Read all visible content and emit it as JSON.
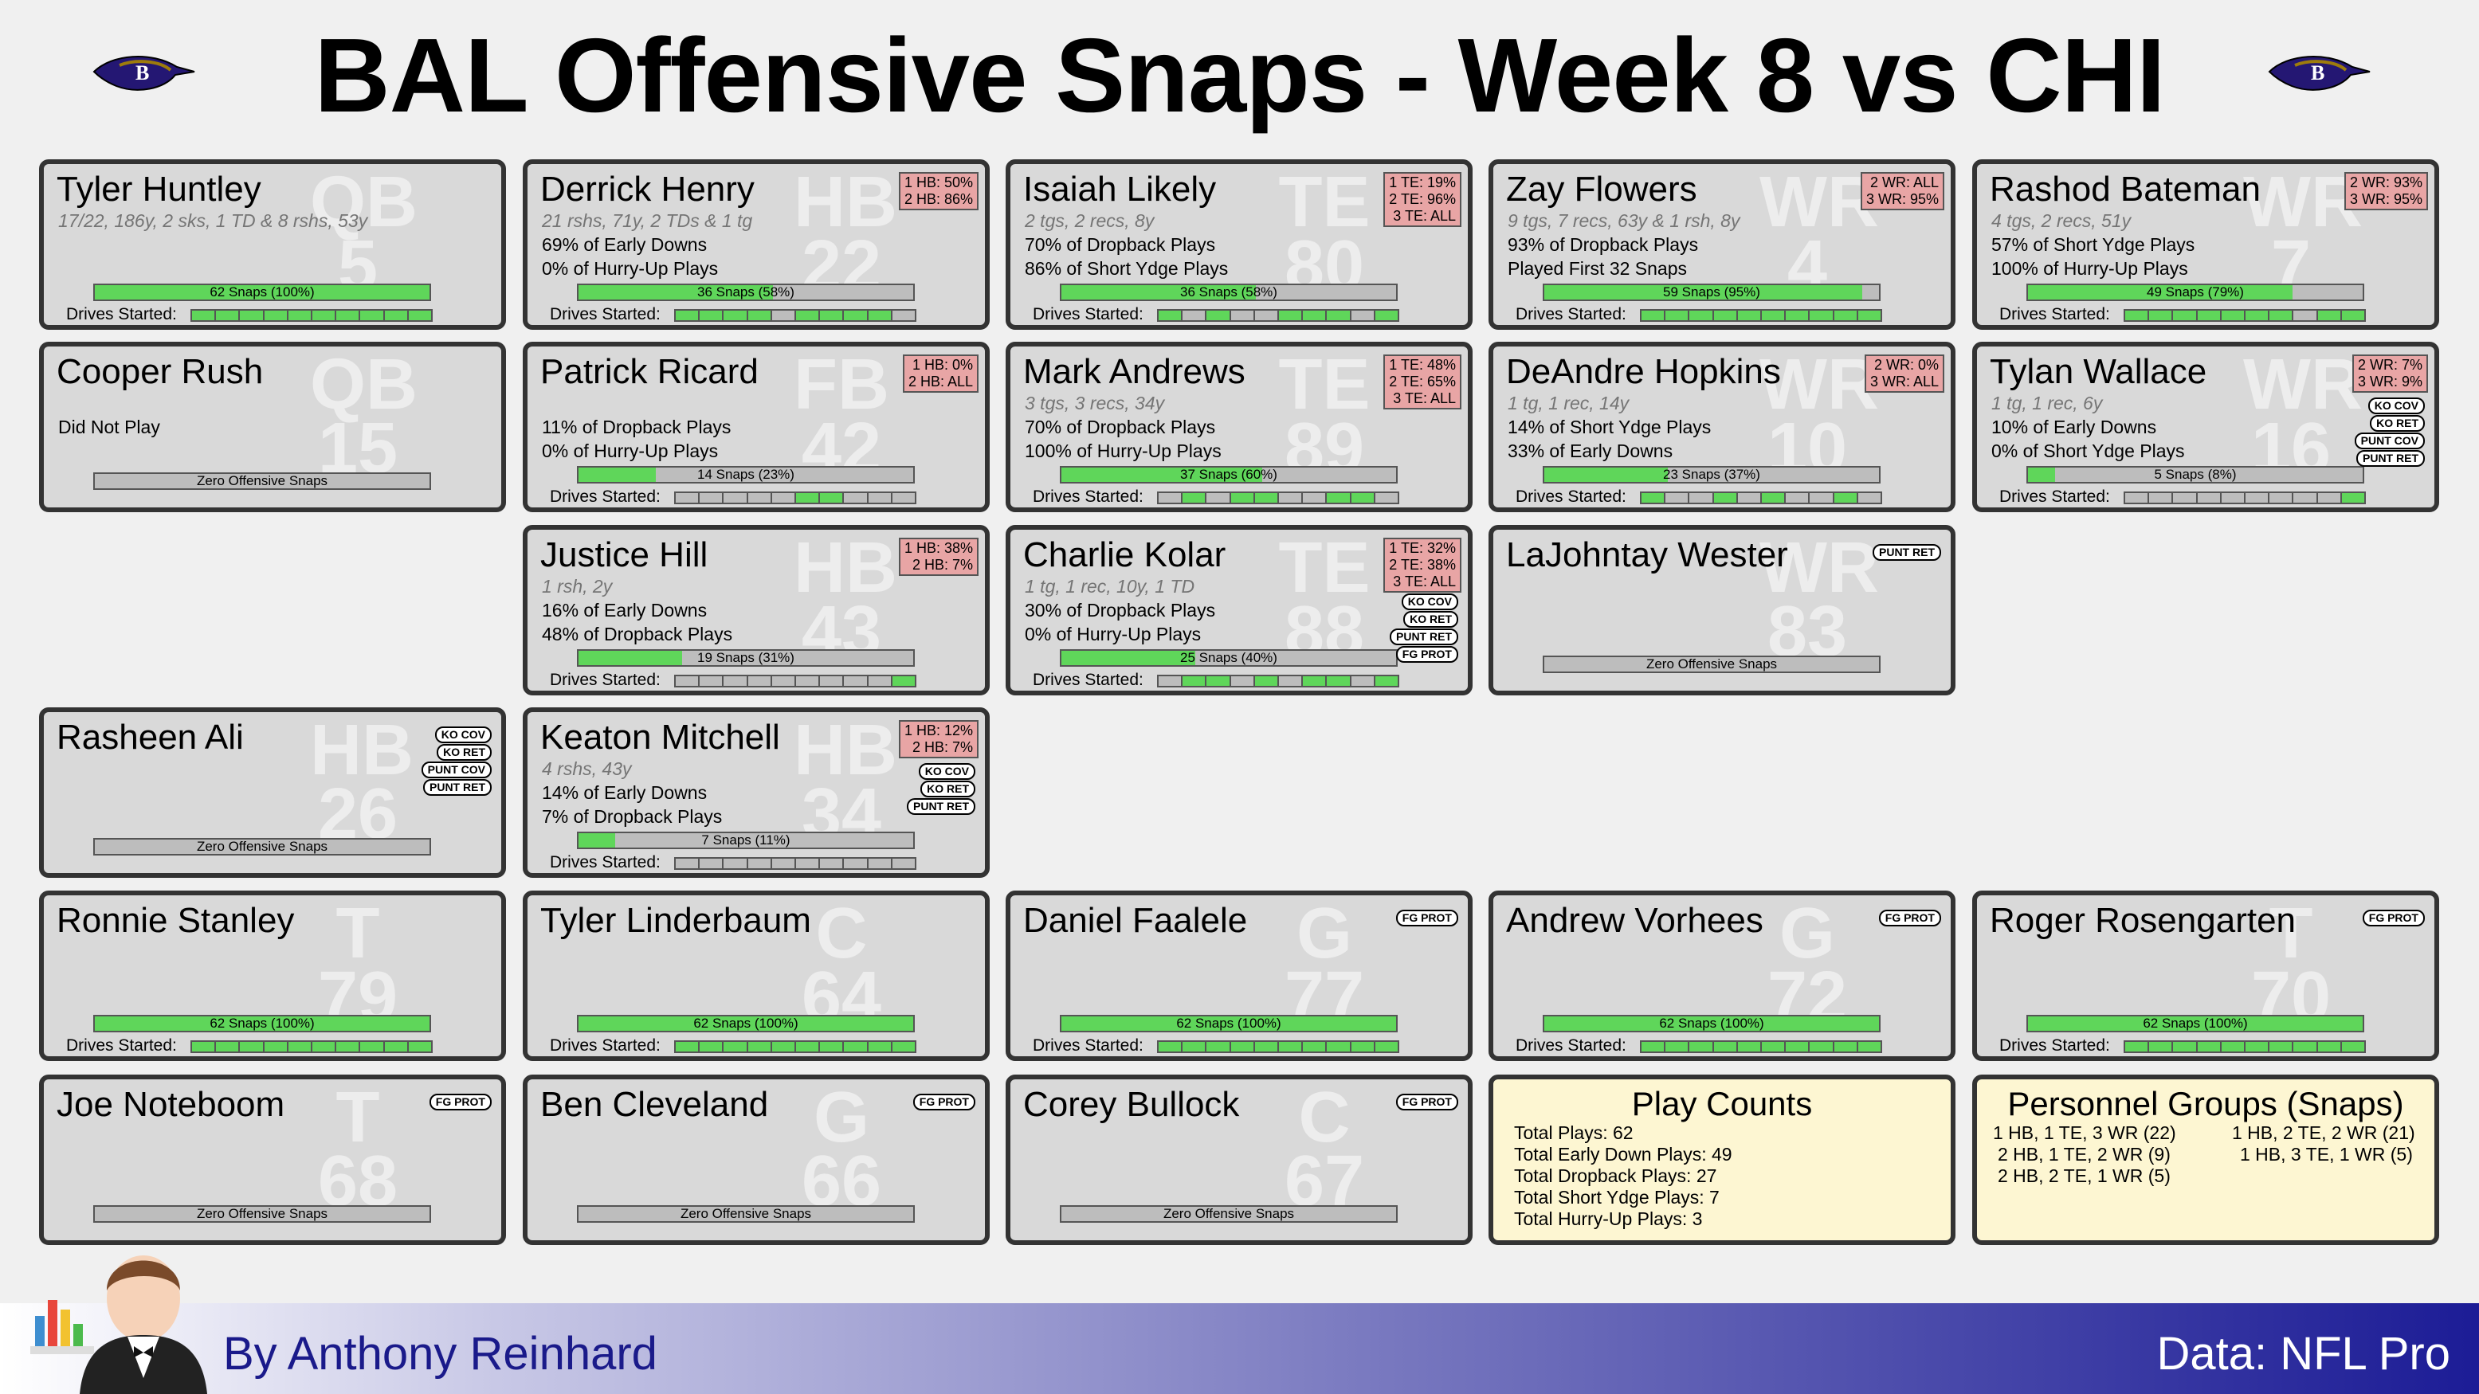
{
  "page": {
    "title": "BAL Offensive Snaps - Week 8 vs CHI",
    "author": "By Anthony Reinhard",
    "source": "Data: NFL Pro",
    "colors": {
      "snap_fill": "#5fd65a",
      "card_bg": "#d9d9d9",
      "pct_bg": "#e8a5a5",
      "info_bg": "#fdf6d2",
      "footer_end": "#1c1c96"
    }
  },
  "drives_label": "Drives Started:",
  "players": [
    {
      "name": "Tyler Huntley",
      "pos": "QB",
      "num": "5",
      "line1": "17/22, 186y, 2 sks, 1 TD & 8 rshs, 53y",
      "line2": "",
      "line3": "",
      "snaps_label": "62 Snaps (100%)",
      "snap_pct": 1.0,
      "drives": [
        1,
        1,
        1,
        1,
        1,
        1,
        1,
        1,
        1,
        1
      ],
      "pct_lines": [],
      "tags": []
    },
    {
      "name": "Derrick Henry",
      "pos": "HB",
      "num": "22",
      "line1": "21 rshs, 71y, 2 TDs & 1 tg",
      "line2": "69% of Early Downs",
      "line3": "0% of Hurry-Up Plays",
      "snaps_label": "36 Snaps (58%)",
      "snap_pct": 0.58,
      "drives": [
        1,
        1,
        1,
        1,
        0,
        1,
        1,
        1,
        1,
        0
      ],
      "pct_lines": [
        "1 HB: 50%",
        "2 HB: 86%"
      ],
      "tags": []
    },
    {
      "name": "Isaiah Likely",
      "pos": "TE",
      "num": "80",
      "line1": "2 tgs, 2 recs, 8y",
      "line2": "70% of Dropback Plays",
      "line3": "86% of Short Ydge Plays",
      "snaps_label": "36 Snaps (58%)",
      "snap_pct": 0.58,
      "drives": [
        1,
        0,
        1,
        0,
        0,
        1,
        1,
        1,
        0,
        1
      ],
      "pct_lines": [
        "1 TE: 19%",
        "2 TE: 96%",
        "3 TE: ALL"
      ],
      "tags": []
    },
    {
      "name": "Zay Flowers",
      "pos": "WR",
      "num": "4",
      "line1": "9 tgs, 7 recs, 63y & 1 rsh, 8y",
      "line2": "93% of Dropback Plays",
      "line3": "Played First 32 Snaps",
      "snaps_label": "59 Snaps (95%)",
      "snap_pct": 0.95,
      "drives": [
        1,
        1,
        1,
        1,
        1,
        1,
        1,
        1,
        1,
        1
      ],
      "pct_lines": [
        "2 WR: ALL",
        "3 WR: 95%"
      ],
      "tags": []
    },
    {
      "name": "Rashod Bateman",
      "pos": "WR",
      "num": "7",
      "line1": "4 tgs, 2 recs, 51y",
      "line2": "57% of Short Ydge Plays",
      "line3": "100% of Hurry-Up Plays",
      "snaps_label": "49 Snaps (79%)",
      "snap_pct": 0.79,
      "drives": [
        1,
        1,
        1,
        1,
        1,
        1,
        1,
        0,
        1,
        1
      ],
      "pct_lines": [
        "2 WR: 93%",
        "3 WR: 95%"
      ],
      "tags": []
    },
    {
      "name": "Cooper Rush",
      "pos": "QB",
      "num": "15",
      "line1": "",
      "line2": "Did Not Play",
      "line3": "",
      "snaps_label": "Zero Offensive Snaps",
      "snap_pct": 0,
      "drives": null,
      "pct_lines": [],
      "tags": []
    },
    {
      "name": "Patrick Ricard",
      "pos": "FB",
      "num": "42",
      "line1": "",
      "line2": "11% of Dropback Plays",
      "line3": "0% of Hurry-Up Plays",
      "snaps_label": "14 Snaps (23%)",
      "snap_pct": 0.23,
      "drives": [
        0,
        0,
        0,
        0,
        0,
        1,
        1,
        0,
        0,
        0
      ],
      "pct_lines": [
        "1 HB:  0%",
        "2 HB: ALL"
      ],
      "tags": []
    },
    {
      "name": "Mark Andrews",
      "pos": "TE",
      "num": "89",
      "line1": "3 tgs, 3 recs, 34y",
      "line2": "70% of Dropback Plays",
      "line3": "100% of Hurry-Up Plays",
      "snaps_label": "37 Snaps (60%)",
      "snap_pct": 0.6,
      "drives": [
        0,
        1,
        0,
        1,
        1,
        0,
        0,
        1,
        1,
        0
      ],
      "pct_lines": [
        "1 TE: 48%",
        "2 TE: 65%",
        "3 TE: ALL"
      ],
      "tags": []
    },
    {
      "name": "DeAndre Hopkins",
      "pos": "WR",
      "num": "10",
      "line1": "1 tg, 1 rec, 14y",
      "line2": "14% of Short Ydge Plays",
      "line3": "33% of Early Downs",
      "snaps_label": "23 Snaps (37%)",
      "snap_pct": 0.37,
      "drives": [
        1,
        0,
        0,
        1,
        0,
        1,
        0,
        0,
        1,
        0
      ],
      "pct_lines": [
        "2 WR:  0%",
        "3 WR: ALL"
      ],
      "tags": []
    },
    {
      "name": "Tylan Wallace",
      "pos": "WR",
      "num": "16",
      "line1": "1 tg, 1 rec, 6y",
      "line2": "10% of Early Downs",
      "line3": "0% of Short Ydge Plays",
      "snaps_label": "5 Snaps (8%)",
      "snap_pct": 0.08,
      "drives": [
        0,
        0,
        0,
        0,
        0,
        0,
        0,
        0,
        0,
        1
      ],
      "pct_lines": [
        "2 WR:  7%",
        "3 WR:  9%"
      ],
      "tags": [
        "KO COV",
        "KO RET",
        "PUNT COV",
        "PUNT RET"
      ]
    },
    {
      "name": "Justice Hill",
      "pos": "HB",
      "num": "43",
      "line1": "1 rsh, 2y",
      "line2": "16% of Early Downs",
      "line3": "48% of Dropback Plays",
      "snaps_label": "19 Snaps (31%)",
      "snap_pct": 0.31,
      "drives": [
        0,
        0,
        0,
        0,
        0,
        0,
        0,
        0,
        0,
        1
      ],
      "pct_lines": [
        "1 HB: 38%",
        "2 HB:  7%"
      ],
      "tags": []
    },
    {
      "name": "Charlie Kolar",
      "pos": "TE",
      "num": "88",
      "line1": "1 tg, 1 rec, 10y, 1 TD",
      "line2": "30% of Dropback Plays",
      "line3": "0% of Hurry-Up Plays",
      "snaps_label": "25 Snaps (40%)",
      "snap_pct": 0.4,
      "drives": [
        0,
        1,
        1,
        0,
        1,
        0,
        1,
        1,
        0,
        1
      ],
      "pct_lines": [
        "1 TE: 32%",
        "2 TE: 38%",
        "3 TE: ALL"
      ],
      "tags": [
        "KO COV",
        "KO RET",
        "PUNT RET",
        "FG PROT"
      ]
    },
    {
      "name": "LaJohntay Wester",
      "pos": "WR",
      "num": "83",
      "line1": "",
      "line2": "",
      "line3": "",
      "snaps_label": "Zero Offensive Snaps",
      "snap_pct": 0,
      "drives": null,
      "pct_lines": [],
      "tags": [
        "PUNT RET"
      ]
    },
    {
      "name": "Rasheen Ali",
      "pos": "HB",
      "num": "26",
      "line1": "",
      "line2": "",
      "line3": "",
      "snaps_label": "Zero Offensive Snaps",
      "snap_pct": 0,
      "drives": null,
      "pct_lines": [],
      "tags": [
        "KO COV",
        "KO RET",
        "PUNT COV",
        "PUNT RET"
      ]
    },
    {
      "name": "Keaton Mitchell",
      "pos": "HB",
      "num": "34",
      "line1": "4 rshs, 43y",
      "line2": "14% of Early Downs",
      "line3": "7% of Dropback Plays",
      "snaps_label": "7 Snaps (11%)",
      "snap_pct": 0.11,
      "drives": [
        0,
        0,
        0,
        0,
        0,
        0,
        0,
        0,
        0,
        0
      ],
      "pct_lines": [
        "1 HB: 12%",
        "2 HB:  7%"
      ],
      "tags": [
        "KO COV",
        "KO RET",
        "PUNT RET"
      ]
    },
    {
      "name": "Ronnie Stanley",
      "pos": "T",
      "num": "79",
      "line1": "",
      "line2": "",
      "line3": "",
      "snaps_label": "62 Snaps (100%)",
      "snap_pct": 1.0,
      "drives": [
        1,
        1,
        1,
        1,
        1,
        1,
        1,
        1,
        1,
        1
      ],
      "pct_lines": [],
      "tags": []
    },
    {
      "name": "Tyler Linderbaum",
      "pos": "C",
      "num": "64",
      "line1": "",
      "line2": "",
      "line3": "",
      "snaps_label": "62 Snaps (100%)",
      "snap_pct": 1.0,
      "drives": [
        1,
        1,
        1,
        1,
        1,
        1,
        1,
        1,
        1,
        1
      ],
      "pct_lines": [],
      "tags": []
    },
    {
      "name": "Daniel Faalele",
      "pos": "G",
      "num": "77",
      "line1": "",
      "line2": "",
      "line3": "",
      "snaps_label": "62 Snaps (100%)",
      "snap_pct": 1.0,
      "drives": [
        1,
        1,
        1,
        1,
        1,
        1,
        1,
        1,
        1,
        1
      ],
      "pct_lines": [],
      "tags": [
        "FG PROT"
      ]
    },
    {
      "name": "Andrew Vorhees",
      "pos": "G",
      "num": "72",
      "line1": "",
      "line2": "",
      "line3": "",
      "snaps_label": "62 Snaps (100%)",
      "snap_pct": 1.0,
      "drives": [
        1,
        1,
        1,
        1,
        1,
        1,
        1,
        1,
        1,
        1
      ],
      "pct_lines": [],
      "tags": [
        "FG PROT"
      ]
    },
    {
      "name": "Roger Rosengarten",
      "pos": "T",
      "num": "70",
      "line1": "",
      "line2": "",
      "line3": "",
      "snaps_label": "62 Snaps (100%)",
      "snap_pct": 1.0,
      "drives": [
        1,
        1,
        1,
        1,
        1,
        1,
        1,
        1,
        1,
        1
      ],
      "pct_lines": [],
      "tags": [
        "FG PROT"
      ]
    },
    {
      "name": "Joe Noteboom",
      "pos": "T",
      "num": "68",
      "line1": "",
      "line2": "",
      "line3": "",
      "snaps_label": "Zero Offensive Snaps",
      "snap_pct": 0,
      "drives": null,
      "pct_lines": [],
      "tags": [
        "FG PROT"
      ]
    },
    {
      "name": "Ben Cleveland",
      "pos": "G",
      "num": "66",
      "line1": "",
      "line2": "",
      "line3": "",
      "snaps_label": "Zero Offensive Snaps",
      "snap_pct": 0,
      "drives": null,
      "pct_lines": [],
      "tags": [
        "FG PROT"
      ]
    },
    {
      "name": "Corey Bullock",
      "pos": "C",
      "num": "67",
      "line1": "",
      "line2": "",
      "line3": "",
      "snaps_label": "Zero Offensive Snaps",
      "snap_pct": 0,
      "drives": null,
      "pct_lines": [],
      "tags": [
        "FG PROT"
      ]
    }
  ],
  "play_counts": {
    "title": "Play Counts",
    "lines": [
      "Total Plays: 62",
      "Total Early Down Plays: 49",
      "Total Dropback Plays: 27",
      "Total Short Ydge Plays: 7",
      "Total Hurry-Up Plays: 3"
    ]
  },
  "personnel": {
    "title": "Personnel Groups (Snaps)",
    "left": [
      "1 HB, 1 TE, 3 WR (22)",
      "2 HB, 1 TE, 2 WR (9)",
      "2 HB, 2 TE, 1 WR (5)"
    ],
    "right": [
      "1 HB, 2 TE, 2 WR (21)",
      "1 HB, 3 TE, 1 WR (5)"
    ]
  }
}
